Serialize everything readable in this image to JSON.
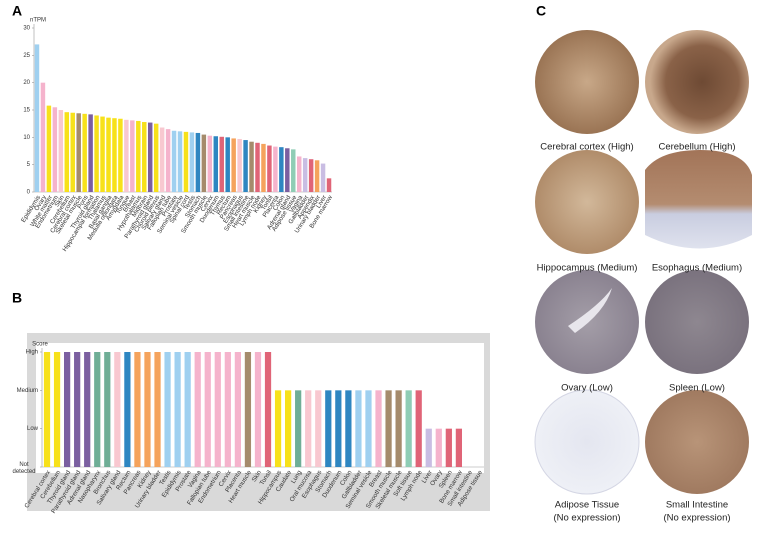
{
  "panel_labels": [
    "A",
    "B",
    "C"
  ],
  "chart_data": [
    {
      "type": "bar",
      "y_label": "nTPM",
      "categories": [
        "Epididymis",
        "Ovary",
        "White matter",
        "Endometrium",
        "Skin",
        "Cerebellum",
        "Cerebral cortex",
        "Skeletal muscle",
        "Pons",
        "Thyroid gland",
        "Hippocampal formation",
        "Thalamus",
        "Basal ganglia",
        "Medulla oblongata",
        "Amygdala",
        "Tongue",
        "Breast",
        "Hypothalamus",
        "Midbrain",
        "Parathyroid gland",
        "Choroid plexus",
        "Salivary gland",
        "Fallopian tube",
        "Prostate",
        "Seminal vesicle",
        "Spinal cord",
        "Testis",
        "Stomach",
        "Smooth muscle",
        "Cervix",
        "Duodenum",
        "Thymus",
        "Rectum",
        "Pancreas",
        "Esophagus",
        "Small intestine",
        "Heart muscle",
        "Lymph node",
        "Kidney",
        "Tonsil",
        "Placenta",
        "Colon",
        "Adrenal gland",
        "Adipose tissue",
        "Vagina",
        "Gallbladder",
        "Appendix",
        "Urinary bladder",
        "Liver",
        "Bone marrow"
      ],
      "values": [
        27,
        20,
        15.8,
        15.5,
        15,
        14.6,
        14.5,
        14.4,
        14.3,
        14.2,
        14,
        13.8,
        13.6,
        13.5,
        13.4,
        13.2,
        13.1,
        13,
        12.8,
        12.7,
        12.5,
        11.8,
        11.5,
        11.2,
        11.1,
        11,
        10.9,
        10.8,
        10.5,
        10.3,
        10.2,
        10.1,
        10,
        9.8,
        9.7,
        9.5,
        9.2,
        9,
        8.8,
        8.5,
        8.3,
        8.2,
        8,
        7.8,
        6.5,
        6.2,
        6,
        5.8,
        5.2,
        2.5
      ],
      "colors": [
        "#9fd0f0",
        "#f5b3cc",
        "#f7e11a",
        "#f5b3cc",
        "#f8c8d0",
        "#f7e11a",
        "#f7e11a",
        "#a58b6c",
        "#f7e11a",
        "#7b5fa0",
        "#f7e11a",
        "#f7e11a",
        "#f7e11a",
        "#f7e11a",
        "#f7e11a",
        "#f8c8d0",
        "#f5b3cc",
        "#f7e11a",
        "#f7e11a",
        "#7b5fa0",
        "#f7e11a",
        "#f8c8d0",
        "#f5b3cc",
        "#9fd0f0",
        "#9fd0f0",
        "#f7e11a",
        "#9fd0f0",
        "#2e86c1",
        "#a58b6c",
        "#f5b3cc",
        "#2e86c1",
        "#e06477",
        "#2e86c1",
        "#f5a35c",
        "#f8c8d0",
        "#2e86c1",
        "#a58b6c",
        "#e06477",
        "#f5a35c",
        "#e06477",
        "#f5b3cc",
        "#2e86c1",
        "#7b5fa0",
        "#8fcdb5",
        "#f5b3cc",
        "#c9bde3",
        "#e06477",
        "#f5a35c",
        "#c9bde3",
        "#e06477"
      ],
      "ylim": [
        0,
        30
      ],
      "yticks": [
        0,
        5,
        10,
        15,
        20,
        25,
        30
      ]
    },
    {
      "type": "bar",
      "y_label": "Score",
      "categories": [
        "Cerebral cortex",
        "Cerebellum",
        "Thyroid gland",
        "Parathyroid gland",
        "Adrenal gland",
        "Nasopharynx",
        "Bronchus",
        "Salivary gland",
        "Rectum",
        "Pancreas",
        "Kidney",
        "Urinary bladder",
        "Testis",
        "Epididymis",
        "Prostate",
        "Vagina",
        "Fallopian tube",
        "Endometrium",
        "Cervix",
        "Placenta",
        "Heart muscle",
        "Skin",
        "Tonsil",
        "Hippocampus",
        "Caudate",
        "Lung",
        "Oral mucosa",
        "Esophagus",
        "Stomach",
        "Duodenum",
        "Colon",
        "Gallbladder",
        "Seminal vesicle",
        "Breast",
        "Smooth muscle",
        "Skeletal muscle",
        "Soft tissue",
        "Lymph node",
        "Liver",
        "Ovary",
        "Spleen",
        "Bone marrow",
        "Small intestine",
        "Adipose tissue"
      ],
      "values": [
        3,
        3,
        3,
        3,
        3,
        3,
        3,
        3,
        3,
        3,
        3,
        3,
        3,
        3,
        3,
        3,
        3,
        3,
        3,
        3,
        3,
        3,
        3,
        2,
        2,
        2,
        2,
        2,
        2,
        2,
        2,
        2,
        2,
        2,
        2,
        2,
        2,
        2,
        1,
        1,
        1,
        1,
        0,
        0
      ],
      "colors": [
        "#f7e11a",
        "#f7e11a",
        "#7b5fa0",
        "#7b5fa0",
        "#7b5fa0",
        "#6fae96",
        "#6fae96",
        "#f8c8d0",
        "#2e86c1",
        "#f5a35c",
        "#f5a35c",
        "#f5a35c",
        "#9fd0f0",
        "#9fd0f0",
        "#9fd0f0",
        "#f5b3cc",
        "#f5b3cc",
        "#f5b3cc",
        "#f5b3cc",
        "#f5b3cc",
        "#a58b6c",
        "#f5b3cc",
        "#e06477",
        "#f7e11a",
        "#f7e11a",
        "#6fae96",
        "#f8c8d0",
        "#f8c8d0",
        "#2e86c1",
        "#2e86c1",
        "#2e86c1",
        "#9fd0f0",
        "#9fd0f0",
        "#f5b3cc",
        "#a58b6c",
        "#a58b6c",
        "#8fcdb5",
        "#e06477",
        "#c9bde3",
        "#f5b3cc",
        "#e06477",
        "#e06477",
        "#f8c8d0",
        "#8fcdb5"
      ],
      "ylim": [
        0,
        3
      ],
      "yticks": [
        {
          "value": 0,
          "label": "Not detected"
        },
        {
          "value": 1,
          "label": "Low"
        },
        {
          "value": 2,
          "label": "Medium"
        },
        {
          "value": 3,
          "label": "High"
        }
      ]
    }
  ],
  "images": [
    {
      "caption": [
        "Cerebral cortex (High)"
      ]
    },
    {
      "caption": [
        "Cerebellum (High)"
      ]
    },
    {
      "caption": [
        "Hippocampus (Medium)"
      ]
    },
    {
      "caption": [
        "Esophagus (Medium)"
      ]
    },
    {
      "caption": [
        "Ovary (Low)"
      ]
    },
    {
      "caption": [
        "Spleen (Low)"
      ]
    },
    {
      "caption": [
        "Adipose Tissue",
        "(No expression)"
      ]
    },
    {
      "caption": [
        "Small Intestine",
        "(No expression)"
      ]
    }
  ]
}
